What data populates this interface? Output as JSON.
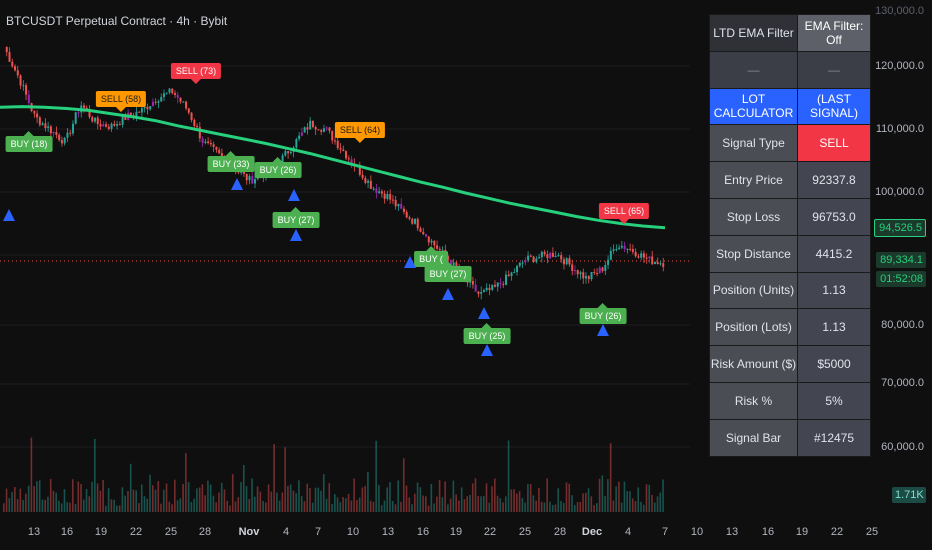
{
  "header": {
    "title": "BTCUSDT Perpetual Contract · 4h · Bybit"
  },
  "price_axis": {
    "labels": [
      "120,000.0",
      "110,000.0",
      "100,000.0",
      "80,000.0",
      "70,000.0",
      "60,000.0"
    ],
    "top_label": "130,000.0",
    "ema_badge": "94,526.5",
    "last_price_badge": "89,334.1",
    "countdown_badge": "01:52:08",
    "volume_badge": "1.71K"
  },
  "time_axis": {
    "labels": [
      "13",
      "16",
      "19",
      "22",
      "25",
      "28",
      "Nov",
      "4",
      "7",
      "10",
      "13",
      "16",
      "19",
      "22",
      "25",
      "28",
      "Dec",
      "4",
      "7",
      "10",
      "13",
      "16",
      "19",
      "22",
      "25"
    ]
  },
  "signals": [
    {
      "label": "SELL (73)",
      "kind": "sell-red"
    },
    {
      "label": "SELL (58)",
      "kind": "sell-orange"
    },
    {
      "label": "SELL (64)",
      "kind": "sell-orange"
    },
    {
      "label": "SELL (65)",
      "kind": "sell-red"
    },
    {
      "label": "BUY (18)",
      "kind": "buy"
    },
    {
      "label": "BUY (33)",
      "kind": "buy"
    },
    {
      "label": "BUY (26)",
      "kind": "buy"
    },
    {
      "label": "BUY (27)",
      "kind": "buy"
    },
    {
      "label": "BUY (",
      "kind": "buy"
    },
    {
      "label": "BUY (27)",
      "kind": "buy"
    },
    {
      "label": "BUY (25)",
      "kind": "buy"
    },
    {
      "label": "BUY (26)",
      "kind": "buy"
    }
  ],
  "table": {
    "filter_label": "LTD EMA Filter",
    "filter_value": "EMA Filter: Off",
    "blank_left": "—",
    "blank_right": "—",
    "calc_label": "LOT CALCULATOR",
    "calc_value": "(LAST SIGNAL)",
    "rows": [
      {
        "label": "Signal Type",
        "value": "SELL"
      },
      {
        "label": "Entry Price",
        "value": "92337.8"
      },
      {
        "label": "Stop Loss",
        "value": "96753.0"
      },
      {
        "label": "Stop Distance",
        "value": "4415.2"
      },
      {
        "label": "Position (Units)",
        "value": "1.13"
      },
      {
        "label": "Position (Lots)",
        "value": "1.13"
      },
      {
        "label": "Risk Amount ($)",
        "value": "$5000"
      },
      {
        "label": "Risk %",
        "value": "5%"
      },
      {
        "label": "Signal Bar",
        "value": "#12475"
      }
    ]
  },
  "colors": {
    "ema": "#26d07c",
    "up": "#26a69a",
    "down": "#ef5350",
    "signal_candle": "#9c27b0",
    "sell_red": "#f23645",
    "sell_orange": "#ff9800",
    "buy": "#4caf50",
    "arrow": "#2962ff"
  },
  "chart_data": {
    "type": "line",
    "series": [
      {
        "name": "",
        "values": [
          123000,
          118000,
          112000,
          110000,
          108000,
          114000,
          111000,
          110500,
          112000,
          113000,
          115000,
          116000,
          113000,
          108000,
          106000,
          104000,
          102000,
          103000,
          105000,
          108000,
          111000,
          110000,
          107000,
          104000,
          101000,
          99500,
          97000,
          95000,
          92000,
          89500,
          86500,
          84000,
          85000,
          87000,
          89500,
          90000,
          90500,
          88500,
          86500,
          88000,
          92000,
          91000,
          89500,
          89000
        ]
      },
      {
        "name": "",
        "values": [
          113500,
          113600,
          113500,
          113300,
          113000,
          112500,
          112000,
          111400,
          110600,
          109900,
          109200,
          108500,
          107800,
          107000,
          106200,
          105300,
          104400,
          103500,
          102600,
          101700,
          100900,
          100000,
          99200,
          98400,
          97700,
          97000,
          96300,
          95700,
          95200,
          94800,
          94526
        ]
      }
    ],
    "ylim": [
      55000,
      130000
    ]
  }
}
